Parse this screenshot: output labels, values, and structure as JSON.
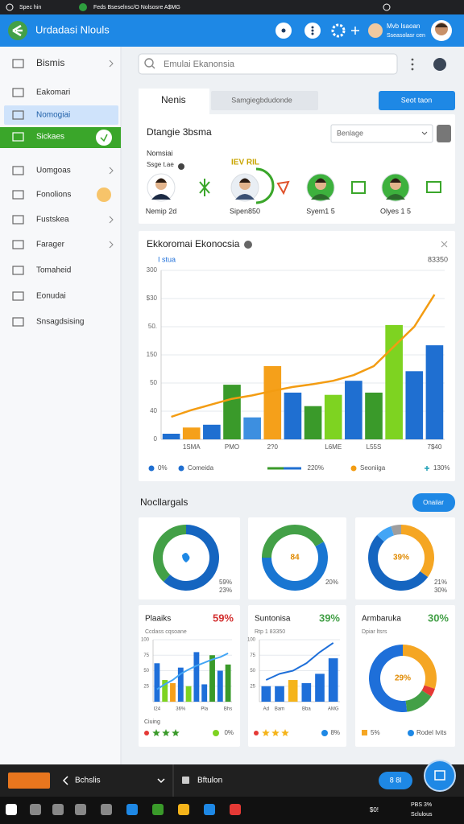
{
  "status_bar": {
    "left": "Spec hin",
    "title": "Feds Bseselnsc/O Nolsosre A$MG"
  },
  "header": {
    "title": "Urdadasi Nlouls",
    "user_name": "Mvb Isaoan",
    "user_role": "Sseasolasr cen"
  },
  "sidebar": {
    "items": [
      "Bismis",
      "Eakomari",
      "Nomogiai",
      "Sickaes",
      "Uomgoas",
      "Fonolions",
      "Fustskea",
      "Farager",
      "Tomaheid",
      "Eonudai",
      "Snsagdsising"
    ]
  },
  "search": {
    "placeholder": "Emulai Ekanonsia"
  },
  "tabs": {
    "active": "Nenis",
    "inactive": "Samgiegbdudonde",
    "button": "Seot taon"
  },
  "people_card": {
    "title": "Dtangie 3bsma",
    "dropdown": "Benlage",
    "label": "Nomsiai",
    "sublabel": "Ssge t.ae",
    "badge": "IEV RIL",
    "people": [
      "Nemip 2d",
      "Sipen850",
      "Syem1 5",
      "Olyes 1 5"
    ]
  },
  "section": {
    "title": "Nocllargals",
    "button": "Onaiiar"
  },
  "chart_data": [
    {
      "type": "bar",
      "title": "Ekkoromai Ekonocsia",
      "subtitle": "I stua",
      "annotation": "83350",
      "categories": [
        null,
        "1SMA",
        null,
        "PMO",
        null,
        "2?0",
        null,
        null,
        "L6ME",
        null,
        "L55S",
        null,
        null,
        "7$40"
      ],
      "series": [
        {
          "name": "Comeida",
          "colors": [
            "#1f6fd1",
            "#f5a01a",
            "#1f6fd1",
            "#3a9a2a",
            "#3d8fe0",
            "#f5a01a",
            "#1f6fd1",
            "#3a9a2a",
            "#7ed321",
            "#1f6fd1",
            "#3a9a2a",
            "#7ed321",
            "#1f6fd1",
            "#1f6fd1"
          ],
          "values": [
            10,
            21,
            26,
            97,
            39,
            130,
            83,
            59,
            79,
            104,
            83,
            203,
            121,
            167
          ]
        },
        {
          "name": "Seoniiga",
          "type": "line",
          "color": "#f39c12",
          "values": [
            40,
            52,
            62,
            72,
            78,
            86,
            93,
            98,
            104,
            114,
            130,
            165,
            200,
            257
          ]
        }
      ],
      "ylim": [
        0,
        300
      ],
      "yticks": [
        0,
        {
          "value": 50,
          "label": "40"
        },
        {
          "value": 100,
          "label": "50"
        },
        150,
        {
          "value": 200,
          "label": "50."
        },
        {
          "value": 250,
          "label": "$30"
        },
        300
      ],
      "grid": true,
      "legend_extra": [
        "0%",
        "220%",
        "130%"
      ]
    },
    {
      "type": "donut",
      "values": [
        62,
        38
      ],
      "colors": [
        "#1565c0",
        "#43a047"
      ],
      "annotations": [
        "59%",
        "23%"
      ]
    },
    {
      "type": "donut",
      "values": [
        17,
        58,
        25
      ],
      "colors": [
        "#43a047",
        "#1976d2",
        "#43a047"
      ],
      "center": "84",
      "annotations": [
        "20%"
      ]
    },
    {
      "type": "donut",
      "values": [
        35,
        52,
        8,
        5
      ],
      "colors": [
        "#f5a623",
        "#1565c0",
        "#42a5f5",
        "#9e9e9e"
      ],
      "center": "39%",
      "annotations": [
        "21%",
        "30%"
      ]
    },
    {
      "type": "bar",
      "title": "Plaaiks",
      "badge": "59%",
      "badge_color": "#d32f2f",
      "subtitle": "Ccdass cqsoane",
      "categories": [
        "I24",
        null,
        null,
        "36%",
        null,
        null,
        "Pla",
        null,
        null,
        "Bhs"
      ],
      "series": [
        {
          "colors": [
            "#1e6fd9",
            "#7ed321",
            "#f5a01a",
            "#1e6fd9",
            "#7ed321",
            "#1e6fd9",
            "#1e6fd9",
            "#3a9a2a",
            "#1e6fd9",
            "#3a9a2a"
          ],
          "values": [
            62,
            35,
            30,
            55,
            25,
            80,
            28,
            75,
            50,
            60
          ]
        },
        {
          "type": "line",
          "color": "#42a5f5",
          "values": [
            20,
            28,
            35,
            45,
            52,
            58,
            63,
            68,
            72,
            78
          ]
        }
      ],
      "ylim": [
        0,
        100
      ],
      "yticks": [
        25,
        50,
        75,
        100
      ],
      "footer": [
        "Ciuing",
        "0%"
      ]
    },
    {
      "type": "bar",
      "title": "Suntonisa",
      "badge": "39%",
      "badge_color": "#43a047",
      "subtitle": "Rtp 1 83350",
      "categories": [
        "Ad",
        "Bam",
        null,
        "Bba",
        null,
        "AMG"
      ],
      "series": [
        {
          "colors": [
            "#1e6fd9",
            "#1e6fd9",
            "#f5b41a",
            "#1e6fd9",
            "#1e6fd9",
            "#1e6fd9"
          ],
          "values": [
            25,
            25,
            35,
            30,
            45,
            70
          ]
        },
        {
          "type": "line",
          "color": "#1e6fd9",
          "values": [
            35,
            45,
            50,
            62,
            80,
            95
          ]
        }
      ],
      "ylim": [
        0,
        100
      ],
      "yticks": [
        25,
        50,
        75,
        100
      ],
      "footer": [
        "8%"
      ]
    },
    {
      "type": "donut",
      "title": "Armbaruka",
      "badge": "30%",
      "badge_color": "#43a047",
      "subtitle": "Dpiar ltsrs",
      "values": [
        30,
        4,
        14,
        52
      ],
      "colors": [
        "#f5a623",
        "#e53935",
        "#43a047",
        "#1e6fd9"
      ],
      "center": "29%",
      "footer": [
        "5%",
        "Rodel Ivits"
      ]
    }
  ],
  "taskbar": {
    "app": "Bchslis",
    "tab": "Bftulon",
    "button": "8 8l",
    "tray": "$0!",
    "time": "PBS 3%",
    "date": "Sclulous"
  }
}
